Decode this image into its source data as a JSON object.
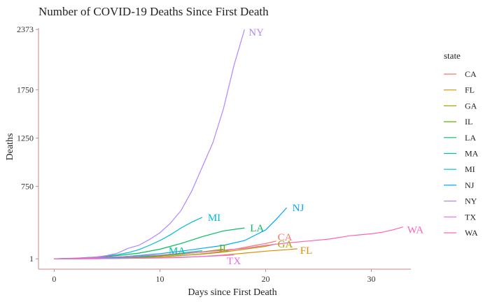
{
  "chart_data": {
    "type": "line",
    "title": "Number of COVID-19 Deaths Since First Death",
    "xlabel": "Days since First Death",
    "ylabel": "Deaths",
    "xlim": [
      0,
      33
    ],
    "ylim": [
      1,
      2373
    ],
    "x_ticks": [
      0,
      10,
      20,
      30
    ],
    "y_ticks": [
      1,
      750,
      1250,
      1750,
      2373
    ],
    "grid": false,
    "legend": {
      "title": "state",
      "position": "right"
    },
    "series": [
      {
        "name": "CA",
        "color": "#F8766D",
        "label": "CA",
        "x": [
          0,
          1,
          2,
          3,
          4,
          5,
          6,
          7,
          8,
          9,
          10,
          11,
          12,
          13,
          14,
          15,
          16,
          17,
          18,
          19,
          20,
          21
        ],
        "y": [
          1,
          1,
          2,
          3,
          4,
          5,
          6,
          8,
          11,
          16,
          22,
          27,
          35,
          44,
          53,
          65,
          80,
          98,
          120,
          140,
          160,
          185
        ]
      },
      {
        "name": "FL",
        "color": "#DB8E00",
        "label": "FL",
        "x": [
          0,
          2,
          4,
          6,
          8,
          10,
          12,
          14,
          16,
          18,
          20,
          22,
          23
        ],
        "y": [
          1,
          2,
          3,
          5,
          7,
          10,
          15,
          25,
          40,
          60,
          80,
          95,
          105
        ]
      },
      {
        "name": "GA",
        "color": "#AEA200",
        "label": "GA",
        "x": [
          0,
          2,
          4,
          6,
          8,
          10,
          12,
          14,
          16,
          18,
          20,
          21
        ],
        "y": [
          1,
          2,
          4,
          8,
          14,
          22,
          35,
          50,
          70,
          100,
          130,
          155
        ]
      },
      {
        "name": "IL",
        "color": "#64B200",
        "label": "IL",
        "x": [
          0,
          2,
          4,
          6,
          8,
          10,
          12,
          14,
          16
        ],
        "y": [
          1,
          3,
          5,
          10,
          20,
          32,
          48,
          72,
          100
        ]
      },
      {
        "name": "LA",
        "color": "#00BD5C",
        "label": "LA",
        "x": [
          0,
          2,
          4,
          6,
          8,
          10,
          12,
          14,
          16,
          18
        ],
        "y": [
          1,
          5,
          15,
          35,
          60,
          100,
          160,
          230,
          290,
          320
        ]
      },
      {
        "name": "MA",
        "color": "#00C1A7",
        "label": "MA",
        "x": [
          0,
          2,
          4,
          6,
          8,
          10,
          12,
          14
        ],
        "y": [
          1,
          3,
          6,
          12,
          22,
          38,
          60,
          85
        ]
      },
      {
        "name": "MI",
        "color": "#00BADE",
        "label": "MI",
        "x": [
          0,
          2,
          4,
          6,
          7,
          8,
          9,
          10,
          11,
          12,
          13,
          14
        ],
        "y": [
          1,
          8,
          20,
          45,
          65,
          95,
          140,
          190,
          250,
          320,
          380,
          430
        ]
      },
      {
        "name": "NJ",
        "color": "#00A6FF",
        "label": "NJ",
        "x": [
          0,
          2,
          4,
          6,
          8,
          10,
          12,
          14,
          16,
          18,
          20,
          21,
          22
        ],
        "y": [
          1,
          5,
          12,
          20,
          35,
          55,
          80,
          110,
          140,
          190,
          300,
          410,
          530
        ]
      },
      {
        "name": "NY",
        "color": "#B385FF",
        "label": "NY",
        "x": [
          0,
          1,
          2,
          3,
          4,
          5,
          6,
          7,
          8,
          9,
          10,
          11,
          12,
          13,
          14,
          15,
          16,
          17,
          18
        ],
        "y": [
          1,
          3,
          6,
          10,
          20,
          35,
          60,
          110,
          140,
          200,
          270,
          370,
          500,
          700,
          950,
          1200,
          1550,
          2000,
          2373
        ]
      },
      {
        "name": "TX",
        "color": "#EF67EB",
        "label": "TX",
        "x": [
          0,
          2,
          4,
          6,
          8,
          10,
          12,
          14,
          16,
          17
        ],
        "y": [
          1,
          2,
          3,
          5,
          8,
          12,
          18,
          25,
          35,
          40
        ]
      },
      {
        "name": "WA",
        "color": "#FF63B6",
        "label": "WA",
        "x": [
          0,
          2,
          4,
          6,
          8,
          10,
          12,
          14,
          16,
          18,
          20,
          22,
          24,
          26,
          28,
          30,
          31,
          32,
          33
        ],
        "y": [
          1,
          8,
          14,
          22,
          30,
          40,
          55,
          70,
          90,
          110,
          140,
          165,
          185,
          205,
          240,
          260,
          275,
          300,
          330
        ]
      }
    ]
  }
}
